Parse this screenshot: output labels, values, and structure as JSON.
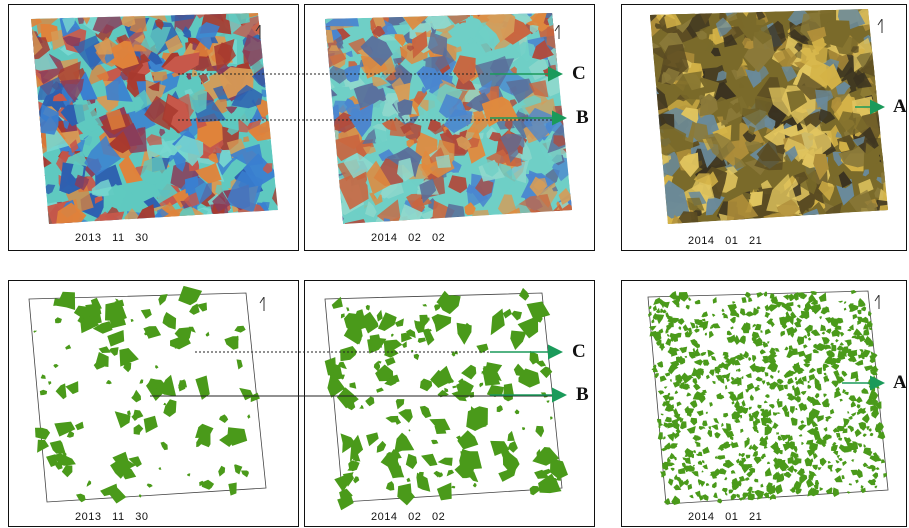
{
  "top_row": {
    "panel1": {
      "date": "2013   11   30"
    },
    "panel2": {
      "date": "2014   02   02"
    },
    "panel3": {
      "date": "2014   01   21"
    }
  },
  "bottom_row": {
    "panel1": {
      "date": "2013   11   30"
    },
    "panel2": {
      "date": "2014   02   02"
    },
    "panel3": {
      "date": "2014   01   21"
    }
  },
  "pointers": {
    "top": {
      "c": "C",
      "b": "B",
      "a": "A"
    },
    "bottom": {
      "c": "C",
      "b": "B",
      "a": "A"
    }
  },
  "colors": {
    "mask_green": "#4a9a1a",
    "arrow_green": "#1a9a5a",
    "panel_border": "#111111"
  }
}
